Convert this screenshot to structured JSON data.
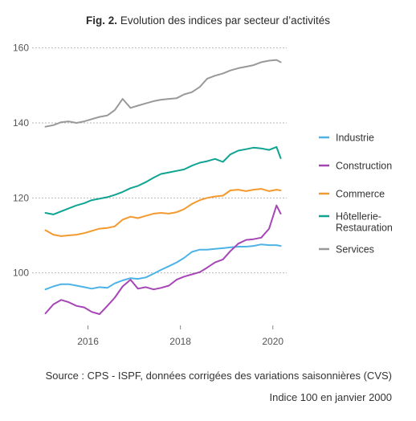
{
  "figure": {
    "label": "Fig. 2.",
    "title": "Evolution des indices par secteur d’activités",
    "source": "Source : CPS - ISPF, données corrigées des variations saisonnières (CVS)",
    "note": "Indice 100 en janvier 2000"
  },
  "chart_data": {
    "type": "line",
    "title": "Evolution des indices par secteur d’activités",
    "xlabel": "",
    "ylabel": "",
    "xlim": [
      2015.0,
      2020.3
    ],
    "ylim": [
      86,
      161
    ],
    "x_ticks": [
      2016,
      2018,
      2020
    ],
    "x_tick_labels": [
      "2016",
      "2018",
      "2020"
    ],
    "y_ticks": [
      100,
      120,
      140,
      160
    ],
    "y_tick_labels": [
      "100",
      "120",
      "140",
      "160"
    ],
    "grid": "horizontal-dashed",
    "legend_position": "right",
    "series": [
      {
        "name": "Industrie",
        "color": "#4db3e6",
        "x": [
          2015.08,
          2015.25,
          2015.42,
          2015.58,
          2015.75,
          2015.92,
          2016.08,
          2016.25,
          2016.42,
          2016.58,
          2016.75,
          2016.92,
          2017.08,
          2017.25,
          2017.42,
          2017.58,
          2017.75,
          2017.92,
          2018.08,
          2018.25,
          2018.42,
          2018.58,
          2018.75,
          2018.92,
          2019.08,
          2019.25,
          2019.42,
          2019.58,
          2019.75,
          2019.92,
          2020.08,
          2020.17
        ],
        "values": [
          95.6,
          96.4,
          97.0,
          97.0,
          96.6,
          96.2,
          95.8,
          96.2,
          96.0,
          97.2,
          98.0,
          98.6,
          98.4,
          98.8,
          99.8,
          100.8,
          101.8,
          102.8,
          104.0,
          105.6,
          106.2,
          106.2,
          106.4,
          106.6,
          106.8,
          107.0,
          107.0,
          107.2,
          107.6,
          107.4,
          107.4,
          107.2
        ]
      },
      {
        "name": "Construction",
        "color": "#a646b6",
        "x": [
          2015.08,
          2015.25,
          2015.42,
          2015.58,
          2015.75,
          2015.92,
          2016.08,
          2016.25,
          2016.42,
          2016.58,
          2016.75,
          2016.92,
          2017.08,
          2017.25,
          2017.42,
          2017.58,
          2017.75,
          2017.92,
          2018.08,
          2018.25,
          2018.42,
          2018.58,
          2018.75,
          2018.92,
          2019.08,
          2019.25,
          2019.42,
          2019.58,
          2019.75,
          2019.92,
          2020.08,
          2020.17
        ],
        "values": [
          89.2,
          91.6,
          92.8,
          92.2,
          91.2,
          90.8,
          89.6,
          89.0,
          91.2,
          93.4,
          96.4,
          98.2,
          95.8,
          96.2,
          95.6,
          96.0,
          96.6,
          98.2,
          99.0,
          99.6,
          100.2,
          101.4,
          102.8,
          103.6,
          105.8,
          107.8,
          108.8,
          109.0,
          109.4,
          111.8,
          118.0,
          115.8
        ]
      },
      {
        "name": "Commerce",
        "color": "#f39a2e",
        "x": [
          2015.08,
          2015.25,
          2015.42,
          2015.58,
          2015.75,
          2015.92,
          2016.08,
          2016.25,
          2016.42,
          2016.58,
          2016.75,
          2016.92,
          2017.08,
          2017.25,
          2017.42,
          2017.58,
          2017.75,
          2017.92,
          2018.08,
          2018.25,
          2018.42,
          2018.58,
          2018.75,
          2018.92,
          2019.08,
          2019.25,
          2019.42,
          2019.58,
          2019.75,
          2019.92,
          2020.08,
          2020.17
        ],
        "values": [
          111.4,
          110.2,
          109.8,
          110.0,
          110.2,
          110.6,
          111.2,
          111.8,
          112.0,
          112.4,
          114.2,
          115.0,
          114.6,
          115.2,
          115.8,
          116.0,
          115.8,
          116.2,
          117.0,
          118.4,
          119.4,
          120.0,
          120.4,
          120.6,
          122.0,
          122.2,
          121.8,
          122.2,
          122.4,
          121.8,
          122.2,
          122.0
        ]
      },
      {
        "name": "Hôtellerie-Restauration",
        "color": "#0fa392",
        "x": [
          2015.08,
          2015.25,
          2015.42,
          2015.58,
          2015.75,
          2015.92,
          2016.08,
          2016.25,
          2016.42,
          2016.58,
          2016.75,
          2016.92,
          2017.08,
          2017.25,
          2017.42,
          2017.58,
          2017.75,
          2017.92,
          2018.08,
          2018.25,
          2018.42,
          2018.58,
          2018.75,
          2018.92,
          2019.08,
          2019.25,
          2019.42,
          2019.58,
          2019.75,
          2019.92,
          2020.08,
          2020.17
        ],
        "values": [
          116.0,
          115.6,
          116.4,
          117.2,
          118.0,
          118.6,
          119.4,
          119.8,
          120.2,
          120.8,
          121.6,
          122.6,
          123.2,
          124.2,
          125.4,
          126.4,
          126.8,
          127.2,
          127.6,
          128.6,
          129.4,
          129.8,
          130.4,
          129.6,
          131.6,
          132.6,
          133.0,
          133.4,
          133.2,
          132.8,
          133.6,
          130.6
        ]
      },
      {
        "name": "Services",
        "color": "#999999",
        "x": [
          2015.08,
          2015.25,
          2015.42,
          2015.58,
          2015.75,
          2015.92,
          2016.08,
          2016.25,
          2016.42,
          2016.58,
          2016.75,
          2016.92,
          2017.08,
          2017.25,
          2017.42,
          2017.58,
          2017.75,
          2017.92,
          2018.08,
          2018.25,
          2018.42,
          2018.58,
          2018.75,
          2018.92,
          2019.08,
          2019.25,
          2019.42,
          2019.58,
          2019.75,
          2019.92,
          2020.08,
          2020.17
        ],
        "values": [
          139.0,
          139.4,
          140.2,
          140.4,
          140.0,
          140.4,
          141.0,
          141.6,
          142.0,
          143.4,
          146.4,
          144.0,
          144.6,
          145.2,
          145.8,
          146.2,
          146.4,
          146.6,
          147.6,
          148.2,
          149.6,
          151.8,
          152.6,
          153.2,
          154.0,
          154.6,
          155.0,
          155.4,
          156.2,
          156.6,
          156.8,
          156.2
        ]
      }
    ]
  }
}
